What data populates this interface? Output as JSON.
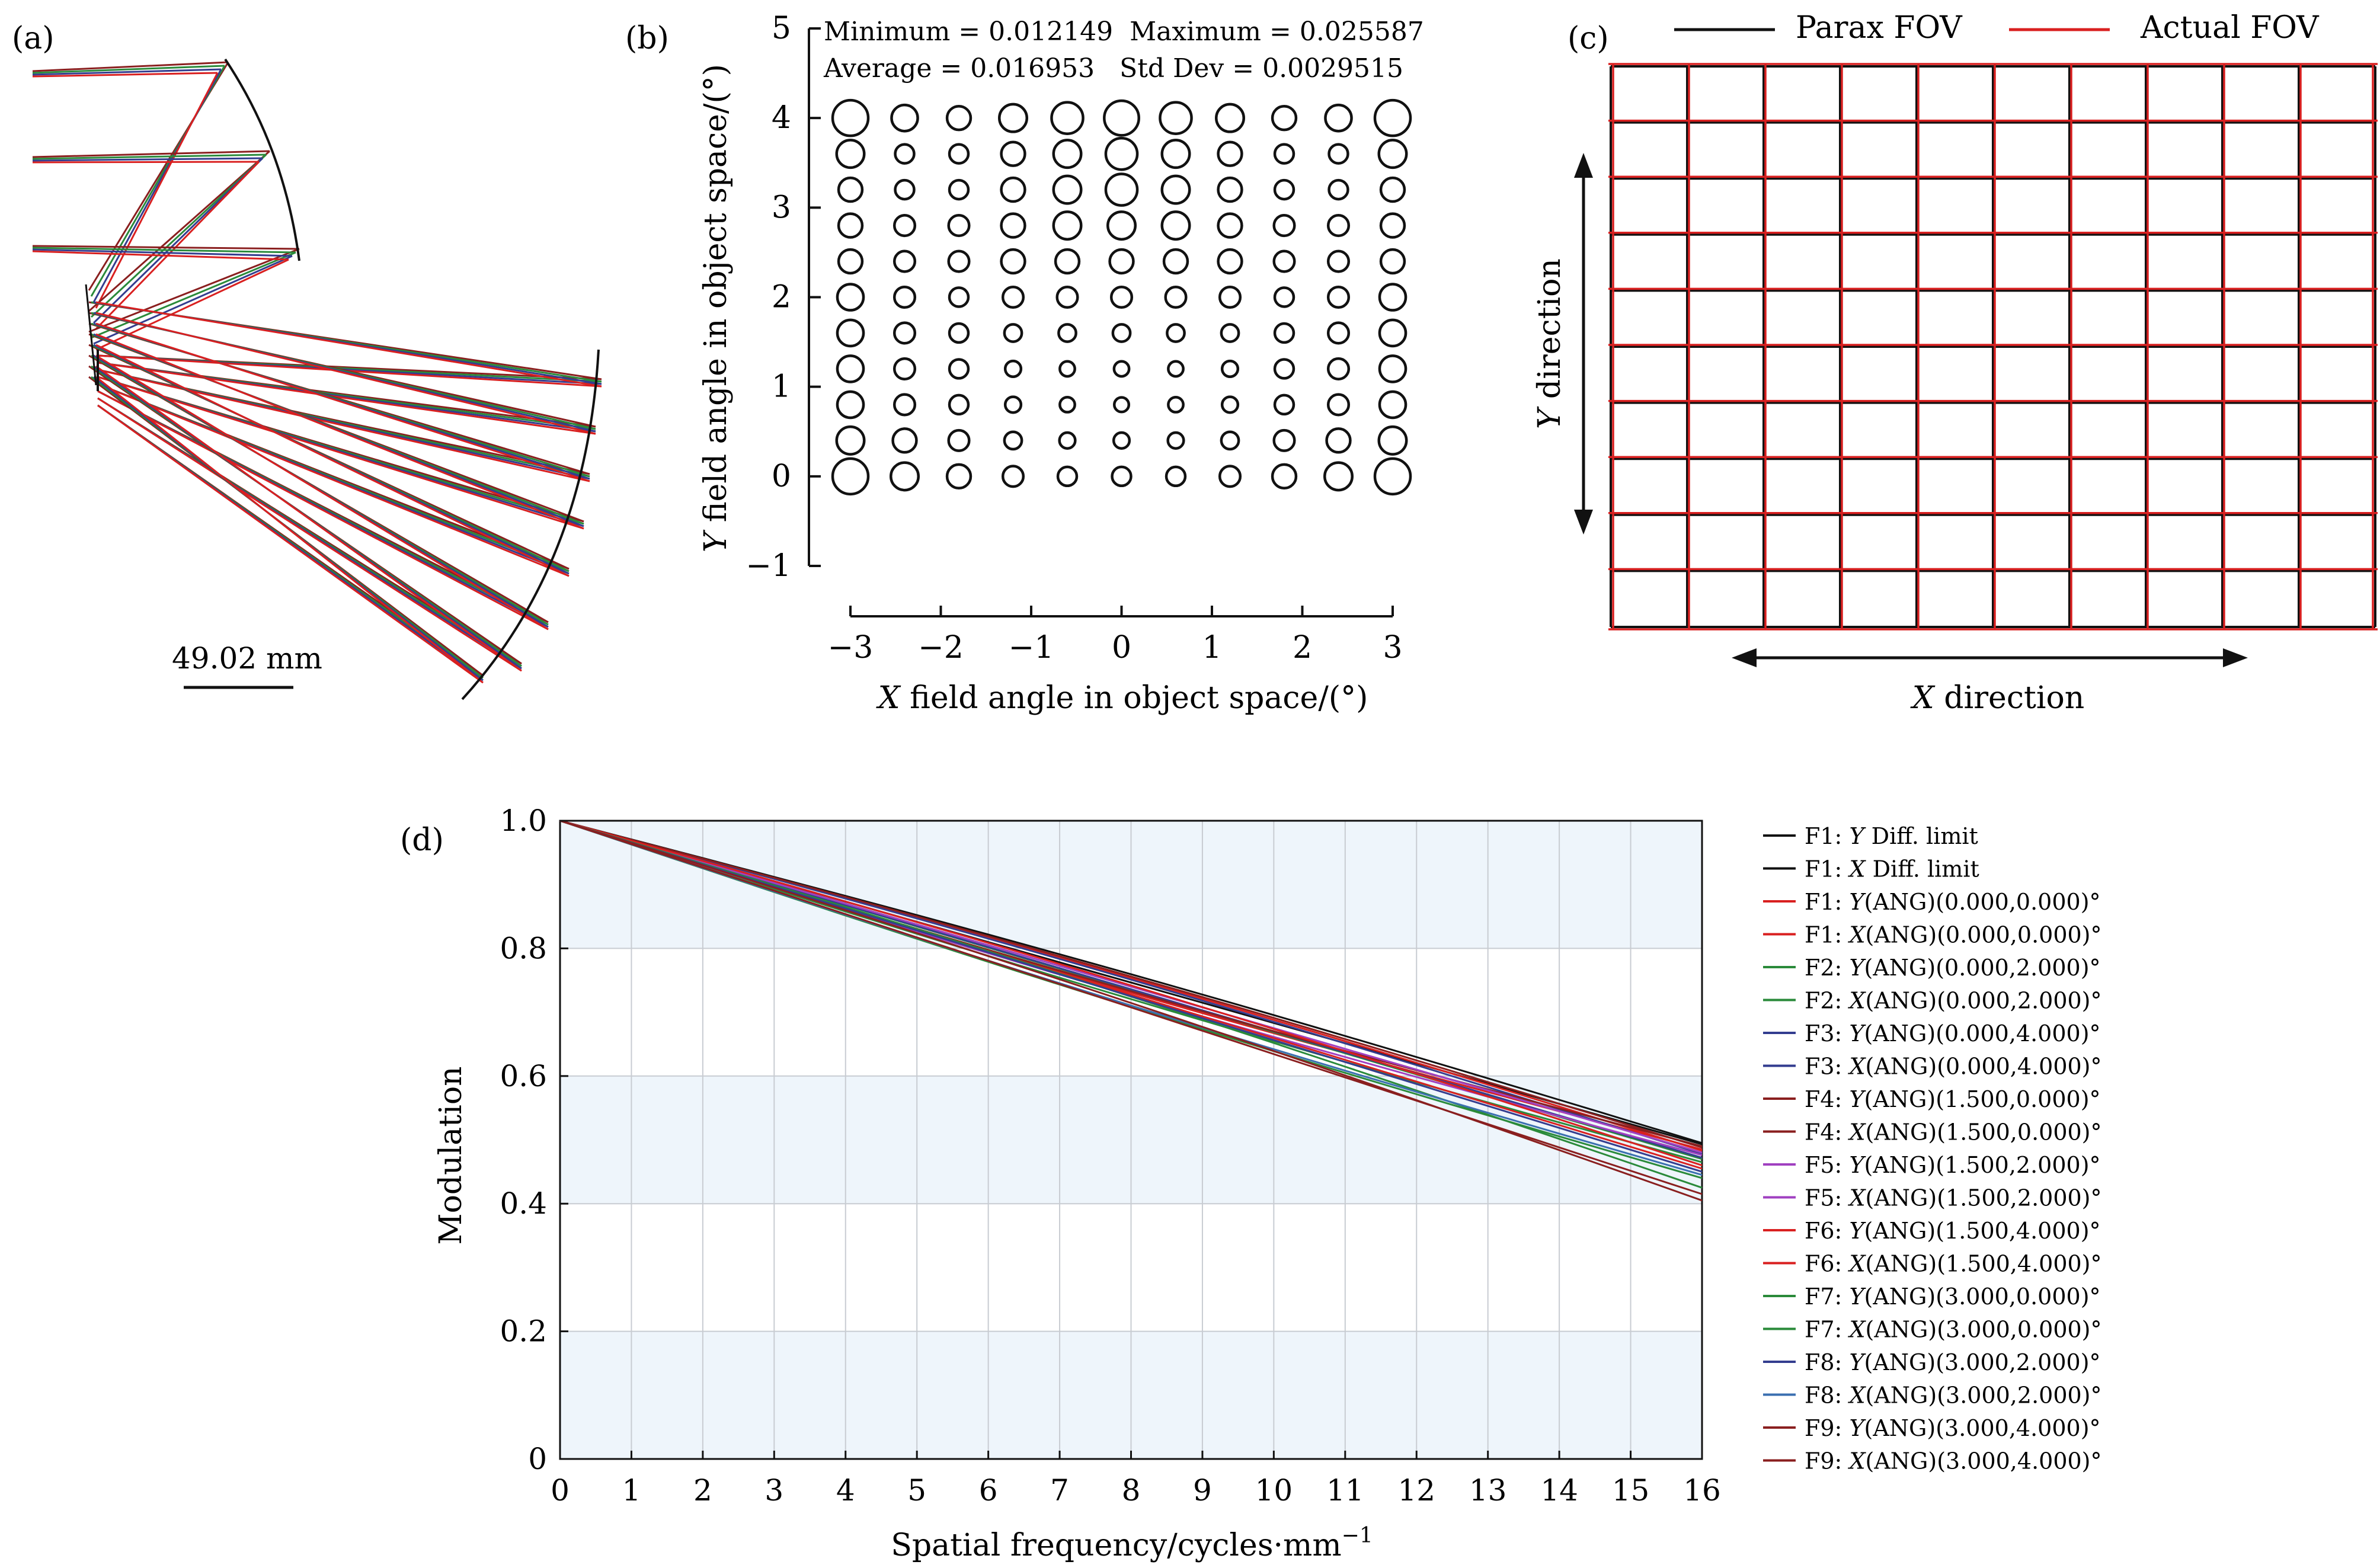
{
  "colors": {
    "black": "#111111",
    "red": "#d92020",
    "green": "#2a8a3a",
    "blue": "#333d8f",
    "purple": "#a040c0",
    "darkred": "#8a1f1f",
    "steelblue": "#3a6fb0",
    "band": "#eef5fb",
    "grid": "#c8ccd2"
  },
  "panel_a": {
    "label": "(a)",
    "scale_text": "49.02 mm",
    "icon": "raytrace-layout-diagram"
  },
  "panel_b": {
    "label": "(b)",
    "stats_line1": "Minimum = 0.012149  Maximum = 0.025587",
    "stats_line2": "Average = 0.016953   Std Dev = 0.0029515",
    "xlabel_pre": "X",
    "xlabel_post": " field angle in object space/(°)",
    "ylabel_pre": "Y",
    "ylabel_post": " field angle in object space/(°)",
    "xticks": [
      "−3",
      "−2",
      "−1",
      "0",
      "1",
      "2",
      "3"
    ],
    "yticks": [
      "5",
      "4",
      "3",
      "2",
      "1",
      "0",
      "−1"
    ]
  },
  "panel_c": {
    "label": "(c)",
    "legend_parax": "Parax FOV",
    "legend_actual": "Actual FOV",
    "xdir_pre": "X",
    "xdir_post": " direction",
    "ydir_pre": "Y",
    "ydir_post": " direction"
  },
  "panel_d": {
    "label": "(d)",
    "xlabel": "Spatial frequency/cycles·mm",
    "xlabel_sup": "−1",
    "ylabel": "Modulation",
    "xticks": [
      "0",
      "1",
      "2",
      "3",
      "4",
      "5",
      "6",
      "7",
      "8",
      "9",
      "10",
      "11",
      "12",
      "13",
      "14",
      "15",
      "16"
    ],
    "yticks": [
      "1.0",
      "0.8",
      "0.6",
      "0.4",
      "0.2",
      "0"
    ],
    "legend": [
      {
        "pre": "F1: ",
        "dir": "Y",
        "post": " Diff. limit",
        "color": "#111111"
      },
      {
        "pre": "F1: ",
        "dir": "X",
        "post": " Diff. limit",
        "color": "#111111"
      },
      {
        "pre": "F1: ",
        "dir": "Y",
        "post": "(ANG)(0.000,0.000)°",
        "color": "#d92020"
      },
      {
        "pre": "F1: ",
        "dir": "X",
        "post": "(ANG)(0.000,0.000)°",
        "color": "#d92020"
      },
      {
        "pre": "F2: ",
        "dir": "Y",
        "post": "(ANG)(0.000,2.000)°",
        "color": "#2a8a3a"
      },
      {
        "pre": "F2: ",
        "dir": "X",
        "post": "(ANG)(0.000,2.000)°",
        "color": "#2a8a3a"
      },
      {
        "pre": "F3: ",
        "dir": "Y",
        "post": "(ANG)(0.000,4.000)°",
        "color": "#333d8f"
      },
      {
        "pre": "F3: ",
        "dir": "X",
        "post": "(ANG)(0.000,4.000)°",
        "color": "#333d8f"
      },
      {
        "pre": "F4: ",
        "dir": "Y",
        "post": "(ANG)(1.500,0.000)°",
        "color": "#8a1f1f"
      },
      {
        "pre": "F4: ",
        "dir": "X",
        "post": "(ANG)(1.500,0.000)°",
        "color": "#8a1f1f"
      },
      {
        "pre": "F5: ",
        "dir": "Y",
        "post": "(ANG)(1.500,2.000)°",
        "color": "#a040c0"
      },
      {
        "pre": "F5: ",
        "dir": "X",
        "post": "(ANG)(1.500,2.000)°",
        "color": "#a040c0"
      },
      {
        "pre": "F6: ",
        "dir": "Y",
        "post": "(ANG)(1.500,4.000)°",
        "color": "#d92020"
      },
      {
        "pre": "F6: ",
        "dir": "X",
        "post": "(ANG)(1.500,4.000)°",
        "color": "#d92020"
      },
      {
        "pre": "F7: ",
        "dir": "Y",
        "post": "(ANG)(3.000,0.000)°",
        "color": "#2a8a3a"
      },
      {
        "pre": "F7: ",
        "dir": "X",
        "post": "(ANG)(3.000,0.000)°",
        "color": "#2a8a3a"
      },
      {
        "pre": "F8: ",
        "dir": "Y",
        "post": "(ANG)(3.000,2.000)°",
        "color": "#333d8f"
      },
      {
        "pre": "F8: ",
        "dir": "X",
        "post": "(ANG)(3.000,2.000)°",
        "color": "#3a6fb0"
      },
      {
        "pre": "F9: ",
        "dir": "Y",
        "post": "(ANG)(3.000,4.000)°",
        "color": "#8a1f1f"
      },
      {
        "pre": "F9: ",
        "dir": "X",
        "post": "(ANG)(3.000,4.000)°",
        "color": "#8a1f1f"
      }
    ]
  },
  "chart_data": [
    {
      "panel": "(b)",
      "type": "scatter",
      "description_free": true,
      "xlabel": "X field angle in object space/(°)",
      "ylabel": "Y field angle in object space/(°)",
      "xlim": [
        -3,
        3
      ],
      "ylim": [
        -1,
        5
      ],
      "x_positions": [
        -3,
        -2.4,
        -1.8,
        -1.2,
        -0.6,
        0,
        0.6,
        1.2,
        1.8,
        2.4,
        3
      ],
      "y_positions": [
        0,
        0.4,
        0.8,
        1.2,
        1.6,
        2.0,
        2.4,
        2.8,
        3.2,
        3.6,
        4.0
      ],
      "stats": {
        "minimum": 0.012149,
        "maximum": 0.025587,
        "average": 0.016953,
        "std_dev": 0.0029515
      },
      "spot_rows": [
        [
          0.0256,
          0.0196,
          0.018,
          0.0205,
          0.023,
          0.025,
          0.023,
          0.0205,
          0.018,
          0.0196,
          0.0256
        ],
        [
          0.0205,
          0.015,
          0.015,
          0.018,
          0.0205,
          0.023,
          0.0205,
          0.018,
          0.015,
          0.015,
          0.0205
        ],
        [
          0.018,
          0.015,
          0.015,
          0.018,
          0.0205,
          0.023,
          0.0205,
          0.018,
          0.015,
          0.015,
          0.018
        ],
        [
          0.018,
          0.016,
          0.016,
          0.018,
          0.0205,
          0.0205,
          0.0205,
          0.018,
          0.016,
          0.016,
          0.018
        ],
        [
          0.018,
          0.016,
          0.016,
          0.018,
          0.018,
          0.018,
          0.018,
          0.018,
          0.016,
          0.016,
          0.018
        ],
        [
          0.0196,
          0.016,
          0.015,
          0.016,
          0.016,
          0.016,
          0.016,
          0.016,
          0.015,
          0.016,
          0.0196
        ],
        [
          0.0196,
          0.016,
          0.015,
          0.014,
          0.014,
          0.014,
          0.014,
          0.014,
          0.015,
          0.016,
          0.0196
        ],
        [
          0.0196,
          0.016,
          0.015,
          0.013,
          0.0125,
          0.0125,
          0.0125,
          0.013,
          0.015,
          0.016,
          0.0196
        ],
        [
          0.0196,
          0.016,
          0.015,
          0.013,
          0.0125,
          0.0122,
          0.0125,
          0.013,
          0.015,
          0.016,
          0.0196
        ],
        [
          0.0205,
          0.018,
          0.016,
          0.014,
          0.013,
          0.013,
          0.013,
          0.014,
          0.016,
          0.018,
          0.0205
        ],
        [
          0.0256,
          0.0205,
          0.018,
          0.016,
          0.015,
          0.015,
          0.015,
          0.016,
          0.018,
          0.0205,
          0.0256
        ]
      ]
    },
    {
      "panel": "(c)",
      "type": "line",
      "series": [
        {
          "name": "Parax FOV",
          "color": "#111111"
        },
        {
          "name": "Actual FOV",
          "color": "#d92020"
        }
      ],
      "grid_columns": 10,
      "grid_rows": 10
    },
    {
      "panel": "(d)",
      "type": "line",
      "xlabel": "Spatial frequency/cycles·mm−1",
      "ylabel": "Modulation",
      "xlim": [
        0,
        16
      ],
      "ylim": [
        0,
        1.0
      ],
      "x": [
        0,
        16
      ],
      "series": [
        {
          "name": "F1: Y Diff. limit",
          "end_value": 0.495
        },
        {
          "name": "F1: X Diff. limit",
          "end_value": 0.493
        },
        {
          "name": "F1: Y(ANG)(0.000,0.000)°",
          "end_value": 0.485
        },
        {
          "name": "F1: X(ANG)(0.000,0.000)°",
          "end_value": 0.483
        },
        {
          "name": "F2: Y(ANG)(0.000,2.000)°",
          "end_value": 0.47
        },
        {
          "name": "F2: X(ANG)(0.000,2.000)°",
          "end_value": 0.465
        },
        {
          "name": "F3: Y(ANG)(0.000,4.000)°",
          "end_value": 0.478
        },
        {
          "name": "F3: X(ANG)(0.000,4.000)°",
          "end_value": 0.472
        },
        {
          "name": "F4: Y(ANG)(1.500,0.000)°",
          "end_value": 0.49
        },
        {
          "name": "F4: X(ANG)(1.500,0.000)°",
          "end_value": 0.488
        },
        {
          "name": "F5: Y(ANG)(1.500,2.000)°",
          "end_value": 0.48
        },
        {
          "name": "F5: X(ANG)(1.500,2.000)°",
          "end_value": 0.476
        },
        {
          "name": "F6: Y(ANG)(1.500,4.000)°",
          "end_value": 0.46
        },
        {
          "name": "F6: X(ANG)(1.500,4.000)°",
          "end_value": 0.455
        },
        {
          "name": "F7: Y(ANG)(3.000,0.000)°",
          "end_value": 0.44
        },
        {
          "name": "F7: X(ANG)(3.000,0.000)°",
          "end_value": 0.425
        },
        {
          "name": "F8: Y(ANG)(3.000,2.000)°",
          "end_value": 0.45
        },
        {
          "name": "F8: X(ANG)(3.000,2.000)°",
          "end_value": 0.445
        },
        {
          "name": "F9: Y(ANG)(3.000,4.000)°",
          "end_value": 0.405
        },
        {
          "name": "F9: X(ANG)(3.000,4.000)°",
          "end_value": 0.415
        }
      ],
      "start_value": 1.0
    }
  ]
}
